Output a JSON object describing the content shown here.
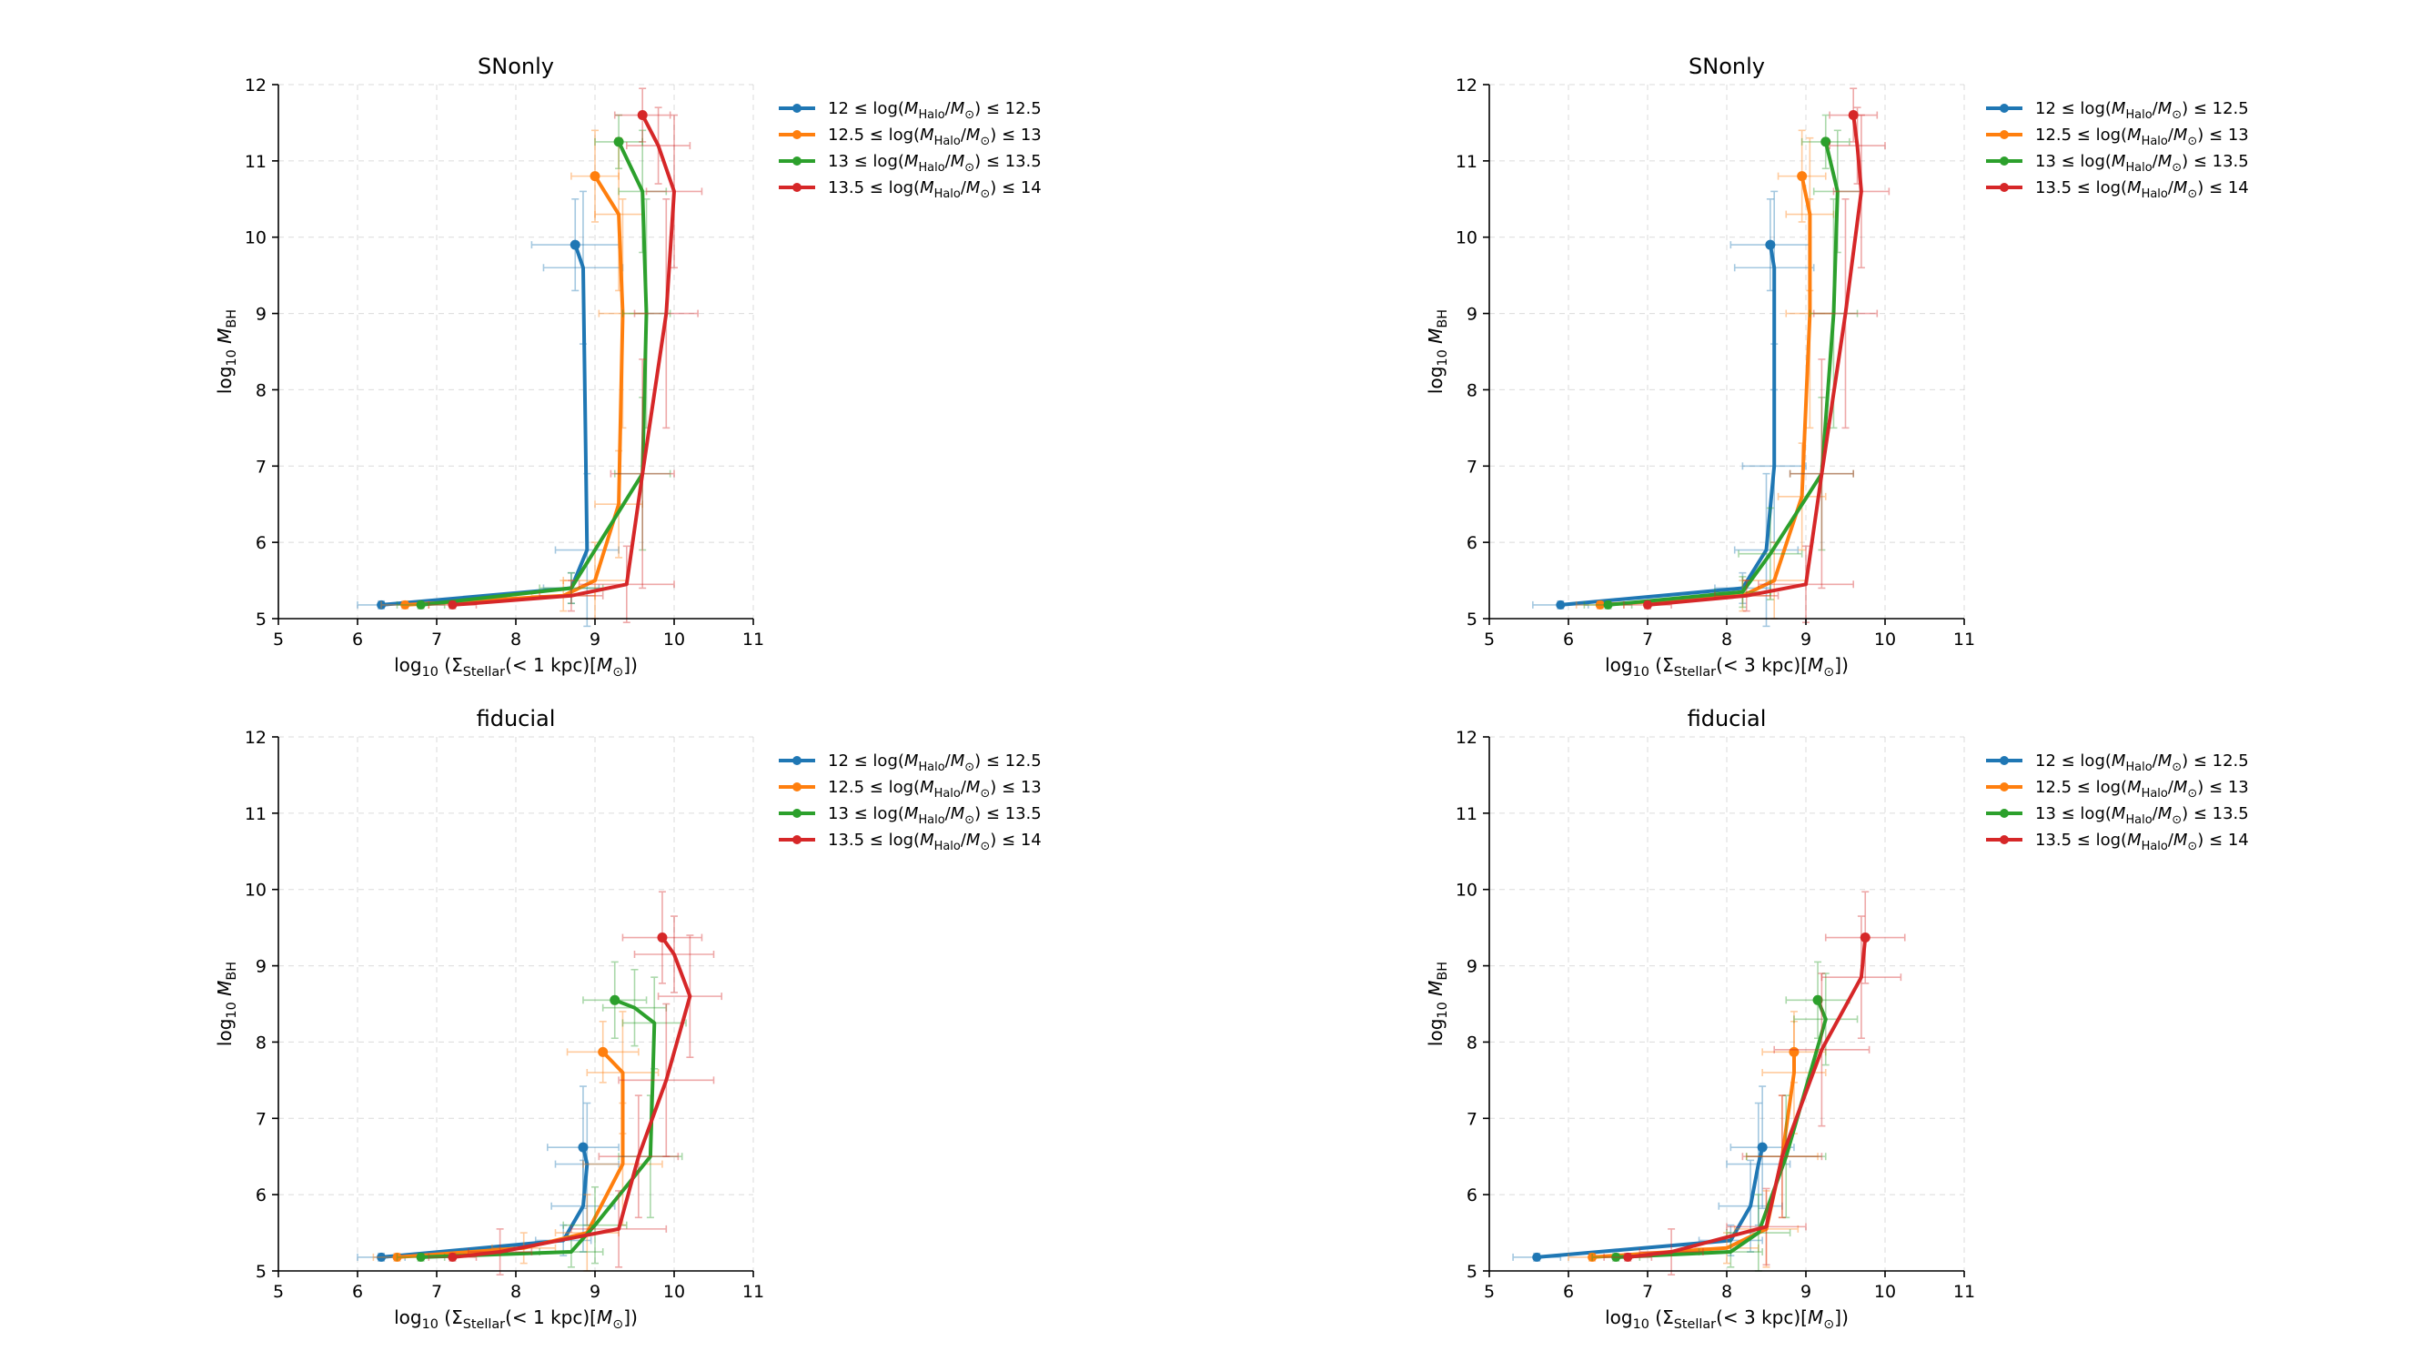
{
  "colors": {
    "series": [
      "#1f77b4",
      "#ff7f0e",
      "#2ca02c",
      "#d62728"
    ]
  },
  "chart_data": [
    {
      "type": "line",
      "title": "SNonly",
      "xlabel": "log10 (Σ_Stellar(<1 kpc)[M⊙])",
      "ylabel": "log10 M_BH",
      "xlim": [
        5,
        11
      ],
      "ylim": [
        5,
        12
      ],
      "xticks": [
        5,
        6,
        7,
        8,
        9,
        10,
        11
      ],
      "yticks": [
        5,
        6,
        7,
        8,
        9,
        10,
        11,
        12
      ],
      "grid": true,
      "legend": "top-right, outside",
      "series": [
        {
          "name": "12 ≤ log(M_Halo/M⊙) ≤ 12.5",
          "x": [
            6.3,
            8.7,
            8.9,
            8.85,
            8.75
          ],
          "y": [
            5.18,
            5.4,
            5.9,
            9.6,
            9.9
          ],
          "xerr": [
            0.3,
            0.35,
            0.4,
            0.5,
            0.55
          ],
          "yerr": [
            0.05,
            0.2,
            1.0,
            1.0,
            0.6
          ]
        },
        {
          "name": "12.5 ≤ log(M_Halo/M⊙) ≤ 13",
          "x": [
            6.6,
            8.6,
            9.0,
            9.3,
            9.35,
            9.3,
            9.0
          ],
          "y": [
            5.18,
            5.3,
            5.5,
            6.5,
            9.0,
            10.3,
            10.8
          ],
          "xerr": [
            0.3,
            0.4,
            0.4,
            0.3,
            0.3,
            0.3,
            0.3
          ],
          "yerr": [
            0.05,
            0.2,
            0.5,
            0.7,
            1.5,
            1.0,
            0.6
          ]
        },
        {
          "name": "13 ≤ log(M_Halo/M⊙) ≤ 13.5",
          "x": [
            6.8,
            8.7,
            9.6,
            9.65,
            9.6,
            9.3
          ],
          "y": [
            5.18,
            5.4,
            6.9,
            9.0,
            10.6,
            11.25
          ],
          "xerr": [
            0.3,
            0.4,
            0.35,
            0.3,
            0.3,
            0.3
          ],
          "yerr": [
            0.05,
            0.2,
            1.0,
            1.5,
            0.8,
            0.35
          ]
        },
        {
          "name": "13.5 ≤ log(M_Halo/M⊙) ≤ 14",
          "x": [
            7.2,
            8.7,
            9.4,
            9.6,
            9.9,
            10.0,
            9.8,
            9.6
          ],
          "y": [
            5.18,
            5.3,
            5.45,
            6.9,
            9.0,
            10.6,
            11.2,
            11.6
          ],
          "xerr": [
            0.3,
            0.4,
            0.6,
            0.4,
            0.4,
            0.35,
            0.4,
            0.35
          ],
          "yerr": [
            0.05,
            0.2,
            0.5,
            1.5,
            1.5,
            1.0,
            0.5,
            0.35
          ]
        }
      ]
    },
    {
      "type": "line",
      "title": "SNonly",
      "xlabel": "log10 (Σ_Stellar(<3 kpc)[M⊙])",
      "ylabel": "log10 M_BH",
      "xlim": [
        5,
        11
      ],
      "ylim": [
        5,
        12
      ],
      "xticks": [
        5,
        6,
        7,
        8,
        9,
        10,
        11
      ],
      "yticks": [
        5,
        6,
        7,
        8,
        9,
        10,
        11,
        12
      ],
      "grid": true,
      "legend": "top-right, outside",
      "series": [
        {
          "name": "12 ≤ log(M_Halo/M⊙) ≤ 12.5",
          "x": [
            5.9,
            8.2,
            8.5,
            8.6,
            8.6,
            8.55
          ],
          "y": [
            5.18,
            5.4,
            5.9,
            7.0,
            9.6,
            9.9
          ],
          "xerr": [
            0.35,
            0.35,
            0.4,
            0.4,
            0.5,
            0.5
          ],
          "yerr": [
            0.05,
            0.2,
            1.0,
            1.0,
            1.0,
            0.6
          ]
        },
        {
          "name": "12.5 ≤ log(M_Halo/M⊙) ≤ 13",
          "x": [
            6.4,
            8.2,
            8.6,
            8.95,
            9.05,
            9.05,
            8.95
          ],
          "y": [
            5.18,
            5.3,
            5.5,
            6.6,
            9.0,
            10.3,
            10.8
          ],
          "xerr": [
            0.3,
            0.35,
            0.4,
            0.3,
            0.3,
            0.3,
            0.3
          ],
          "yerr": [
            0.05,
            0.2,
            0.5,
            0.7,
            1.5,
            1.0,
            0.6
          ]
        },
        {
          "name": "13 ≤ log(M_Halo/M⊙) ≤ 13.5",
          "x": [
            6.5,
            8.2,
            8.55,
            9.2,
            9.35,
            9.4,
            9.25
          ],
          "y": [
            5.18,
            5.35,
            5.85,
            6.9,
            9.0,
            10.6,
            11.25
          ],
          "xerr": [
            0.3,
            0.35,
            0.4,
            0.4,
            0.3,
            0.3,
            0.3
          ],
          "yerr": [
            0.05,
            0.2,
            0.6,
            1.0,
            1.5,
            0.8,
            0.35
          ]
        },
        {
          "name": "13.5 ≤ log(M_Halo/M⊙) ≤ 14",
          "x": [
            7.0,
            8.25,
            9.0,
            9.2,
            9.5,
            9.7,
            9.65,
            9.6
          ],
          "y": [
            5.18,
            5.3,
            5.45,
            6.9,
            9.0,
            10.6,
            11.2,
            11.6
          ],
          "xerr": [
            0.3,
            0.4,
            0.6,
            0.4,
            0.4,
            0.35,
            0.35,
            0.3
          ],
          "yerr": [
            0.05,
            0.2,
            0.5,
            1.5,
            1.5,
            1.0,
            0.5,
            0.35
          ]
        }
      ]
    },
    {
      "type": "line",
      "title": "fiducial",
      "xlabel": "log10 (Σ_Stellar(<1 kpc)[M⊙])",
      "ylabel": "log10 M_BH",
      "xlim": [
        5,
        11
      ],
      "ylim": [
        5,
        12
      ],
      "xticks": [
        5,
        6,
        7,
        8,
        9,
        10,
        11
      ],
      "yticks": [
        5,
        6,
        7,
        8,
        9,
        10,
        11,
        12
      ],
      "grid": true,
      "legend": "top-right, outside",
      "series": [
        {
          "name": "12 ≤ log(M_Halo/M⊙) ≤ 12.5",
          "x": [
            6.3,
            8.6,
            8.85,
            8.9,
            8.85
          ],
          "y": [
            5.18,
            5.4,
            5.85,
            6.4,
            6.62
          ],
          "xerr": [
            0.3,
            0.35,
            0.4,
            0.4,
            0.45
          ],
          "yerr": [
            0.05,
            0.2,
            0.6,
            0.8,
            0.8
          ]
        },
        {
          "name": "12.5 ≤ log(M_Halo/M⊙) ≤ 13",
          "x": [
            6.5,
            8.1,
            8.9,
            9.35,
            9.35,
            9.1
          ],
          "y": [
            5.18,
            5.3,
            5.5,
            6.4,
            7.6,
            7.87
          ],
          "xerr": [
            0.3,
            0.4,
            0.4,
            0.5,
            0.45,
            0.45
          ],
          "yerr": [
            0.05,
            0.2,
            0.5,
            0.8,
            0.8,
            0.4
          ]
        },
        {
          "name": "13 ≤ log(M_Halo/M⊙) ≤ 13.5",
          "x": [
            6.8,
            8.7,
            9.0,
            9.7,
            9.75,
            9.5,
            9.25
          ],
          "y": [
            5.18,
            5.25,
            5.6,
            6.5,
            8.25,
            8.45,
            8.55
          ],
          "xerr": [
            0.3,
            0.4,
            0.4,
            0.4,
            0.4,
            0.4,
            0.4
          ],
          "yerr": [
            0.05,
            0.2,
            0.5,
            0.8,
            0.6,
            0.5,
            0.5
          ]
        },
        {
          "name": "13.5 ≤ log(M_Halo/M⊙) ≤ 14",
          "x": [
            7.2,
            7.8,
            9.3,
            9.55,
            9.9,
            10.2,
            10.0,
            9.85
          ],
          "y": [
            5.18,
            5.25,
            5.55,
            6.5,
            7.5,
            8.6,
            9.15,
            9.37
          ],
          "xerr": [
            0.3,
            0.4,
            0.6,
            0.5,
            0.6,
            0.4,
            0.5,
            0.5
          ],
          "yerr": [
            0.05,
            0.3,
            0.5,
            0.8,
            1.0,
            0.8,
            0.5,
            0.6
          ]
        }
      ]
    },
    {
      "type": "line",
      "title": "fiducial",
      "xlabel": "log10 (Σ_Stellar(<3 kpc)[M⊙])",
      "ylabel": "log10 M_BH",
      "xlim": [
        5,
        11
      ],
      "ylim": [
        5,
        12
      ],
      "xticks": [
        5,
        6,
        7,
        8,
        9,
        10,
        11
      ],
      "yticks": [
        5,
        6,
        7,
        8,
        9,
        10,
        11,
        12
      ],
      "grid": true,
      "legend": "top-right, outside",
      "series": [
        {
          "name": "12 ≤ log(M_Halo/M⊙) ≤ 12.5",
          "x": [
            5.6,
            8.05,
            8.3,
            8.4,
            8.45
          ],
          "y": [
            5.18,
            5.4,
            5.85,
            6.4,
            6.62
          ],
          "xerr": [
            0.3,
            0.4,
            0.4,
            0.4,
            0.4
          ],
          "yerr": [
            0.05,
            0.2,
            0.6,
            0.8,
            0.8
          ]
        },
        {
          "name": "12.5 ≤ log(M_Halo/M⊙) ≤ 13",
          "x": [
            6.3,
            8.0,
            8.5,
            8.7,
            8.85,
            8.85
          ],
          "y": [
            5.18,
            5.3,
            5.55,
            6.5,
            7.6,
            7.87
          ],
          "xerr": [
            0.3,
            0.4,
            0.4,
            0.45,
            0.4,
            0.4
          ],
          "yerr": [
            0.05,
            0.2,
            0.5,
            0.8,
            0.8,
            0.4
          ]
        },
        {
          "name": "13 ≤ log(M_Halo/M⊙) ≤ 13.5",
          "x": [
            6.6,
            8.05,
            8.4,
            8.75,
            9.25,
            9.15
          ],
          "y": [
            5.18,
            5.25,
            5.5,
            6.5,
            8.3,
            8.55
          ],
          "xerr": [
            0.3,
            0.4,
            0.4,
            0.5,
            0.4,
            0.4
          ],
          "yerr": [
            0.05,
            0.2,
            0.5,
            0.8,
            0.6,
            0.5
          ]
        },
        {
          "name": "13.5 ≤ log(M_Halo/M⊙) ≤ 14",
          "x": [
            6.75,
            7.3,
            8.5,
            8.7,
            9.2,
            9.7,
            9.75
          ],
          "y": [
            5.18,
            5.25,
            5.58,
            6.5,
            7.9,
            8.85,
            9.37
          ],
          "xerr": [
            0.3,
            0.4,
            0.5,
            0.5,
            0.6,
            0.5,
            0.5
          ],
          "yerr": [
            0.05,
            0.3,
            0.5,
            0.8,
            1.0,
            0.8,
            0.6
          ]
        }
      ]
    }
  ]
}
